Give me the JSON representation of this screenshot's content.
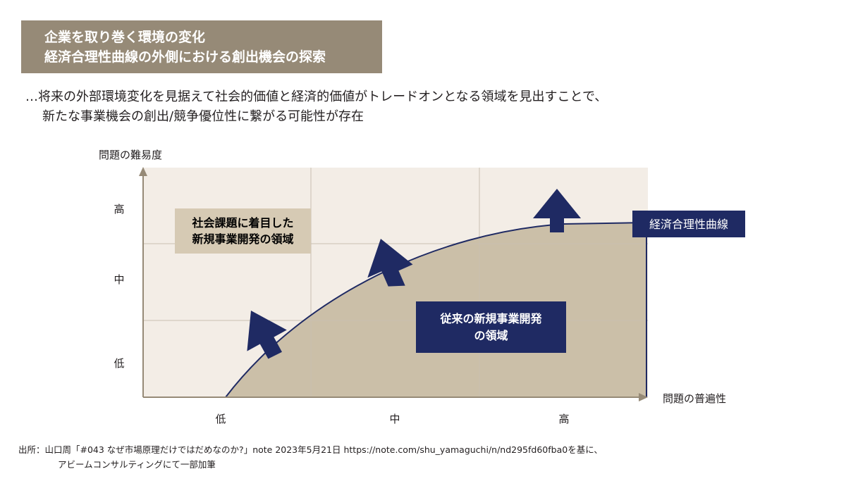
{
  "header": {
    "line1": "企業を取り巻く環境の変化",
    "line2": "経済合理性曲線の外側における創出機会の探索"
  },
  "lead": {
    "line1": "…将来の外部環境変化を見据えて社会的価値と経済的価値がトレードオンとなる領域を見出すことで、",
    "line2": "新たな事業機会の創出/競争優位性に繋がる可能性が存在"
  },
  "diagram": {
    "y_axis_title": "問題の難易度",
    "x_axis_title": "問題の普遍性",
    "y_ticks": [
      "高",
      "中",
      "低"
    ],
    "x_ticks": [
      "低",
      "中",
      "高"
    ],
    "outer_region_label": [
      "社会課題に着目した",
      "新規事業開発の領域"
    ],
    "inner_region_label": [
      "従来の新規事業開発",
      "の領域"
    ],
    "curve_label": "経済合理性曲線",
    "colors": {
      "plot_background": "#f3ede6",
      "inner_region": "#cbbfa8",
      "outer_label_box": "#d6cab4",
      "navy": "#1f2a63",
      "grid": "#c9bfb1",
      "axis": "#968a77"
    }
  },
  "source": {
    "line1": "出所：山口周「#043 なぜ市場原理だけではだめなのか?」note 2023年5月21日 https://note.com/shu_yamaguchi/n/nd295fd60fba0を基に、",
    "line2": "アビームコンサルティングにて一部加筆"
  }
}
